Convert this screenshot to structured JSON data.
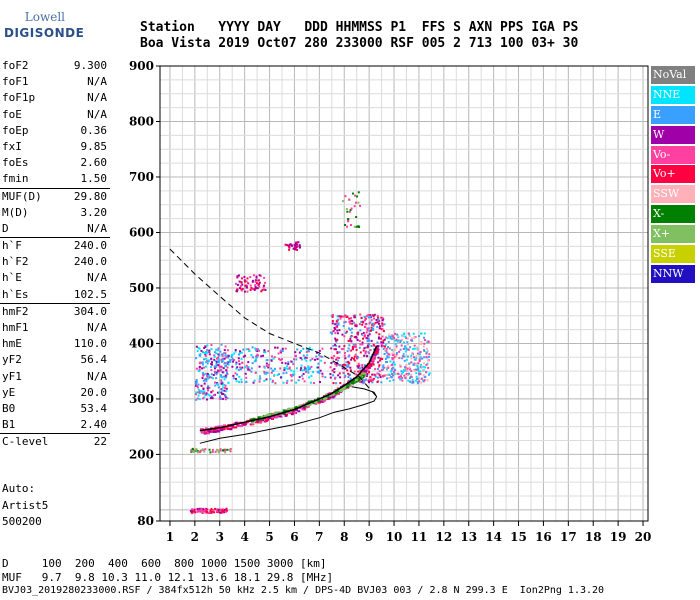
{
  "logo": {
    "line1": "Lowell",
    "line2": "DIGISONDE"
  },
  "header": {
    "line1": "Station   YYYY DAY   DDD HHMMSS P1  FFS S AXN PPS IGA PS",
    "line2": "Boa Vista 2019 Oct07 280 233000 RSF 005 2 713 100 03+ 30"
  },
  "params": [
    {
      "label": "foF2",
      "value": "9.300"
    },
    {
      "label": "foF1",
      "value": "N/A"
    },
    {
      "label": "foF1p",
      "value": "N/A"
    },
    {
      "label": "foE",
      "value": "N/A"
    },
    {
      "label": "foEp",
      "value": "0.36"
    },
    {
      "label": "fxI",
      "value": "9.85"
    },
    {
      "label": "foEs",
      "value": "2.60"
    },
    {
      "label": "fmin",
      "value": "1.50"
    },
    {
      "label": "MUF(D)",
      "value": "29.80",
      "sep": true
    },
    {
      "label": "M(D)",
      "value": "3.20"
    },
    {
      "label": "D",
      "value": "N/A"
    },
    {
      "label": "h`F",
      "value": "240.0",
      "sep": true
    },
    {
      "label": "h`F2",
      "value": "240.0"
    },
    {
      "label": "h`E",
      "value": "N/A"
    },
    {
      "label": "h`Es",
      "value": "102.5"
    },
    {
      "label": "hmF2",
      "value": "304.0",
      "sep": true
    },
    {
      "label": "hmF1",
      "value": "N/A"
    },
    {
      "label": "hmE",
      "value": "110.0"
    },
    {
      "label": "yF2",
      "value": "56.4"
    },
    {
      "label": "yF1",
      "value": "N/A"
    },
    {
      "label": "yE",
      "value": "20.0"
    },
    {
      "label": "B0",
      "value": "53.4"
    },
    {
      "label": "B1",
      "value": "2.40"
    },
    {
      "label": "C-level",
      "value": "22",
      "sep": true
    }
  ],
  "auto": {
    "line1": "Auto:",
    "line2": "Artist5",
    "line3": "500200"
  },
  "legend": [
    {
      "label": "NoVal",
      "color": "#808080"
    },
    {
      "label": "NNE",
      "color": "#00e5ff"
    },
    {
      "label": "E",
      "color": "#3aa0ff"
    },
    {
      "label": "W",
      "color": "#a000a8"
    },
    {
      "label": "Vo-",
      "color": "#ff40a0"
    },
    {
      "label": "Vo+",
      "color": "#ff0040"
    },
    {
      "label": "SSW",
      "color": "#ffb0b8"
    },
    {
      "label": "X-",
      "color": "#008000"
    },
    {
      "label": "X+",
      "color": "#80c060"
    },
    {
      "label": "SSE",
      "color": "#c8d000"
    },
    {
      "label": "NNW",
      "color": "#2010c0"
    }
  ],
  "footer": {
    "d_row": "D     100  200  400  600  800 1000 1500 3000 [km]",
    "muf_row": "MUF   9.7  9.8 10.3 11.0 12.1 13.6 18.1 29.8 [MHz]",
    "file_row": "BVJ03_2019280233000.RSF / 384fx512h 50 kHz 2.5 km / DPS-4D BVJ03 003 / 2.8 N 299.3 E  Ion2Png 1.3.20"
  },
  "chart_data": {
    "type": "scatter",
    "title": "",
    "xlabel": "",
    "ylabel": "",
    "xlim": [
      0.6,
      20.2
    ],
    "ylim": [
      80,
      900
    ],
    "x_ticks": [
      "1",
      "2",
      "3",
      "4",
      "5",
      "6",
      "7",
      "8",
      "9",
      "10",
      "11",
      "12",
      "13",
      "14",
      "15",
      "16",
      "17",
      "18",
      "19",
      "20"
    ],
    "y_ticks": [
      "80",
      "200",
      "300",
      "400",
      "500",
      "600",
      "700",
      "800",
      "900"
    ],
    "grid": true,
    "es_trace": {
      "x0": 1.8,
      "x1": 3.3,
      "h": 100
    },
    "o_trace": [
      [
        2.2,
        243
      ],
      [
        3,
        248
      ],
      [
        4,
        258
      ],
      [
        5,
        268
      ],
      [
        6,
        281
      ],
      [
        7,
        300
      ],
      [
        7.5,
        310
      ],
      [
        8,
        324
      ],
      [
        8.5,
        340
      ],
      [
        9,
        365
      ],
      [
        9.3,
        395
      ]
    ],
    "x_trace": [
      [
        4.2,
        262
      ],
      [
        5,
        272
      ],
      [
        6,
        285
      ],
      [
        7,
        302
      ],
      [
        7.8,
        318
      ],
      [
        8.4,
        334
      ],
      [
        8.8,
        348
      ]
    ],
    "profile_solid": [
      [
        2.2,
        220
      ],
      [
        3,
        229
      ],
      [
        4,
        236
      ],
      [
        5,
        245
      ],
      [
        6,
        254
      ],
      [
        7,
        266
      ],
      [
        7.6,
        276
      ],
      [
        8.2,
        282
      ],
      [
        8.8,
        290
      ],
      [
        9.2,
        296
      ],
      [
        9.3,
        304
      ],
      [
        9.2,
        312
      ],
      [
        8.8,
        318
      ],
      [
        8.3,
        322
      ]
    ],
    "profile_dashed": [
      [
        1,
        570
      ],
      [
        2,
        525
      ],
      [
        3,
        485
      ],
      [
        4,
        446
      ],
      [
        5,
        418
      ],
      [
        6,
        400
      ],
      [
        7,
        383
      ],
      [
        7.8,
        362
      ],
      [
        8.6,
        340
      ],
      [
        9.3,
        304
      ]
    ],
    "spread_clusters": [
      {
        "x": [
          2,
          3.3
        ],
        "h": [
          300,
          400
        ],
        "n": 260,
        "colors": [
          "#00e5ff",
          "#3aa0ff",
          "#a000a8",
          "#ff40a0"
        ]
      },
      {
        "x": [
          3.3,
          7.2
        ],
        "h": [
          330,
          395
        ],
        "n": 260,
        "colors": [
          "#00e5ff",
          "#a000a8",
          "#ff40a0",
          "#3aa0ff"
        ]
      },
      {
        "x": [
          7.4,
          9.6
        ],
        "h": [
          330,
          455
        ],
        "n": 420,
        "colors": [
          "#ff0040",
          "#a000a8",
          "#ff40a0",
          "#3aa0ff"
        ]
      },
      {
        "x": [
          9.6,
          11.4
        ],
        "h": [
          330,
          420
        ],
        "n": 300,
        "colors": [
          "#00e5ff",
          "#3aa0ff",
          "#ffb0b8",
          "#ff40a0"
        ]
      },
      {
        "x": [
          3.6,
          4.8
        ],
        "h": [
          495,
          525
        ],
        "n": 70,
        "colors": [
          "#a000a8",
          "#ff0040",
          "#ff40a0"
        ]
      },
      {
        "x": [
          5.6,
          6.2
        ],
        "h": [
          570,
          585
        ],
        "n": 30,
        "colors": [
          "#ff0040",
          "#a000a8"
        ]
      },
      {
        "x": [
          7.9,
          8.6
        ],
        "h": [
          610,
          680
        ],
        "n": 30,
        "colors": [
          "#008000",
          "#80c060",
          "#ff40a0"
        ]
      },
      {
        "x": [
          1.8,
          3.4
        ],
        "h": [
          205,
          212
        ],
        "n": 45,
        "colors": [
          "#008000",
          "#80c060",
          "#ff40a0"
        ]
      },
      {
        "x": [
          1.8,
          3.3
        ],
        "h": [
          96,
          104
        ],
        "n": 80,
        "colors": [
          "#ff0040",
          "#ff40a0",
          "#a000a8"
        ]
      }
    ]
  }
}
